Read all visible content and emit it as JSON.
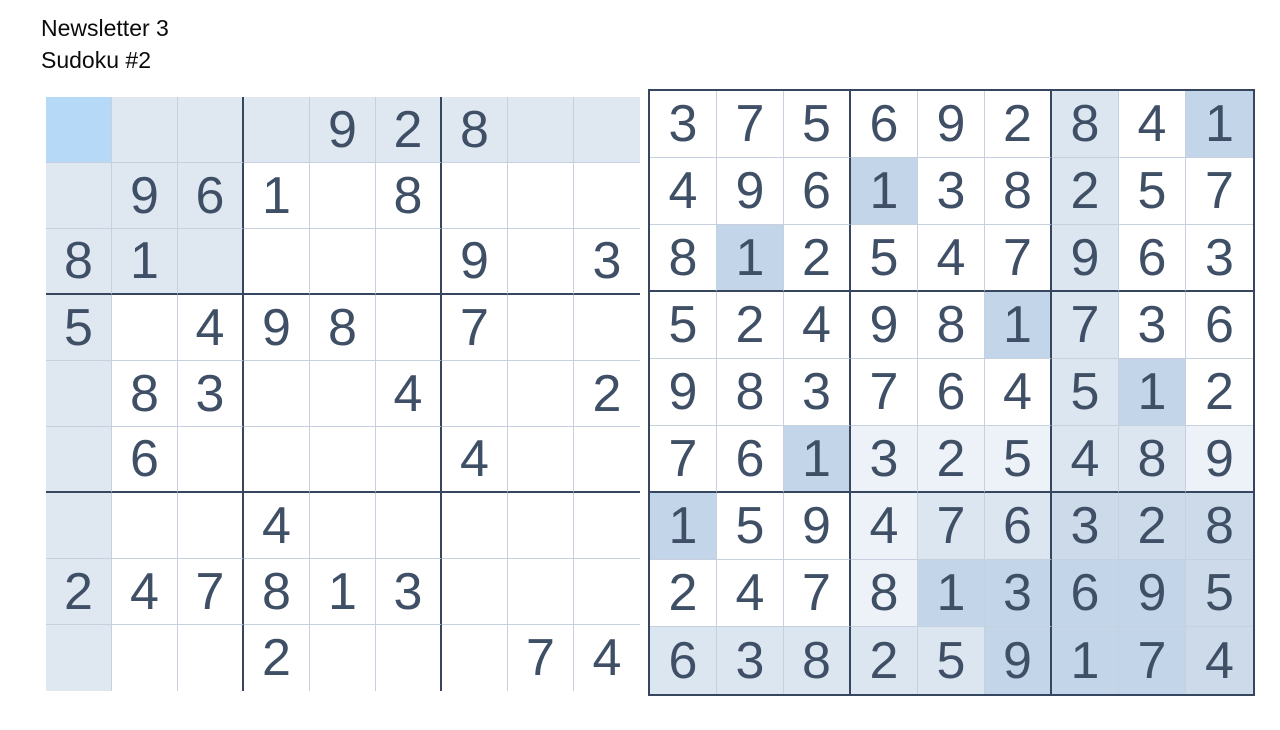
{
  "header": {
    "line1": "Newsletter 3",
    "line2": "Sudoku #2"
  },
  "palette": {
    "digit": "#3f4f66",
    "thin_line": "#c6d0df",
    "thick_line": "#36465f",
    "shades": {
      "0": "#ffffff",
      "1": "#edf2f9",
      "2": "#dce6f0",
      "3": "#cddae9",
      "4": "#c3d5e8",
      "h": "#dfe7f1",
      "s": "#b5d9f7"
    }
  },
  "grids": [
    {
      "name": "puzzle",
      "values": [
        "....928..",
        ".961.8...",
        "81....9.3",
        "5.498.7..",
        ".83..4..2",
        ".6....4..",
        "...4.....",
        "247813...",
        "...2...74"
      ],
      "shades": [
        "shhhhhhhh",
        "hhh000000",
        "hhh000000",
        "h00000000",
        "h00000000",
        "h00000000",
        "h00000000",
        "h00000000",
        "h00000000"
      ]
    },
    {
      "name": "solution",
      "values": [
        "375692841",
        "496138257",
        "812547963",
        "524981736",
        "983764512",
        "761325489",
        "159476328",
        "247813695",
        "638259174"
      ],
      "shades": [
        "000000204",
        "000400200",
        "040000200",
        "000004200",
        "000000240",
        "004111221",
        "400122333",
        "000144443",
        "222224443"
      ]
    }
  ]
}
